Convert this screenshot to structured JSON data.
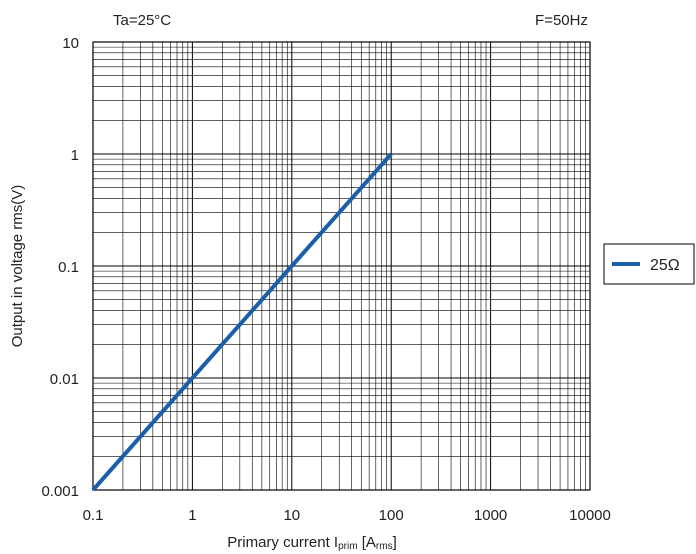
{
  "chart_data": {
    "type": "line",
    "x_scale": "log",
    "y_scale": "log",
    "xlim": [
      0.1,
      10000
    ],
    "ylim": [
      0.001,
      10
    ],
    "x_ticks": [
      "0.1",
      "1",
      "10",
      "100",
      "1000",
      "10000"
    ],
    "y_ticks": [
      "10",
      "1",
      "0.1",
      "0.01",
      "0.001"
    ],
    "xlabel": {
      "main": "Primary current I",
      "sub": "prim",
      "bracket_open": " [A",
      "unit_sub": "rms",
      "bracket_close": "]"
    },
    "ylabel": "Output in voltage rms(V)",
    "annotations": {
      "top_left": "Ta=25°C",
      "top_right": "F=50Hz"
    },
    "grid": true,
    "legend_position": "right",
    "series": [
      {
        "name": "25Ω",
        "color": "#1a5fa8",
        "x": [
          0.1,
          1,
          10,
          100
        ],
        "y": [
          0.001,
          0.01,
          0.1,
          1
        ]
      }
    ]
  }
}
